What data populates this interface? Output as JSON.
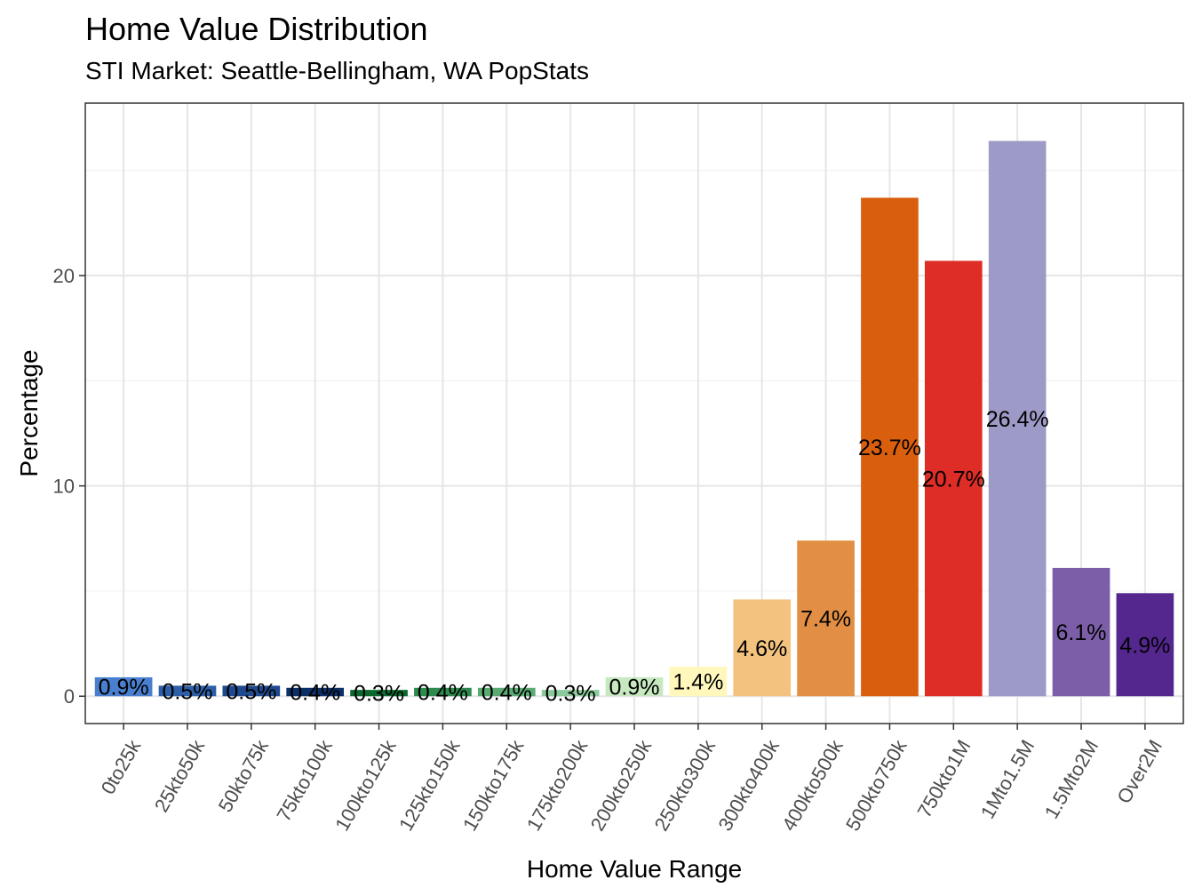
{
  "chart_data": {
    "type": "bar",
    "title": "Home Value Distribution",
    "subtitle": "STI Market: Seattle-Bellingham, WA PopStats",
    "xlabel": "Home Value Range",
    "ylabel": "Percentage",
    "categories": [
      "0to25k",
      "25kto50k",
      "50kto75k",
      "75kto100k",
      "100kto125k",
      "125kto150k",
      "150kto175k",
      "175kto200k",
      "200kto250k",
      "250kto300k",
      "300kto400k",
      "400kto500k",
      "500kto750k",
      "750kto1M",
      "1Mto1.5M",
      "1.5Mto2M",
      "Over2M"
    ],
    "values": [
      0.9,
      0.5,
      0.5,
      0.4,
      0.3,
      0.4,
      0.4,
      0.3,
      0.9,
      1.4,
      4.6,
      7.4,
      23.7,
      20.7,
      26.4,
      6.1,
      4.9
    ],
    "labels": [
      "0.9%",
      "0.5%",
      "0.5%",
      "0.4%",
      "0.3%",
      "0.4%",
      "0.4%",
      "0.3%",
      "0.9%",
      "1.4%",
      "4.6%",
      "7.4%",
      "23.7%",
      "20.7%",
      "26.4%",
      "6.1%",
      "4.9%"
    ],
    "colors": [
      "#4a7fcf",
      "#2d5fa8",
      "#1f4b8e",
      "#0b2f66",
      "#0a6a2e",
      "#2e8b4e",
      "#5aab73",
      "#8cc99a",
      "#c7e9c0",
      "#fff7bc",
      "#f2c27e",
      "#e28f45",
      "#d95f0e",
      "#de2d26",
      "#9e9ac8",
      "#7b5ea7",
      "#54278f"
    ],
    "ylim": [
      -1.3,
      28.2
    ],
    "yticks": [
      0,
      10,
      20
    ],
    "ytick_labels": [
      "0",
      "10",
      "20"
    ],
    "grid": true
  }
}
